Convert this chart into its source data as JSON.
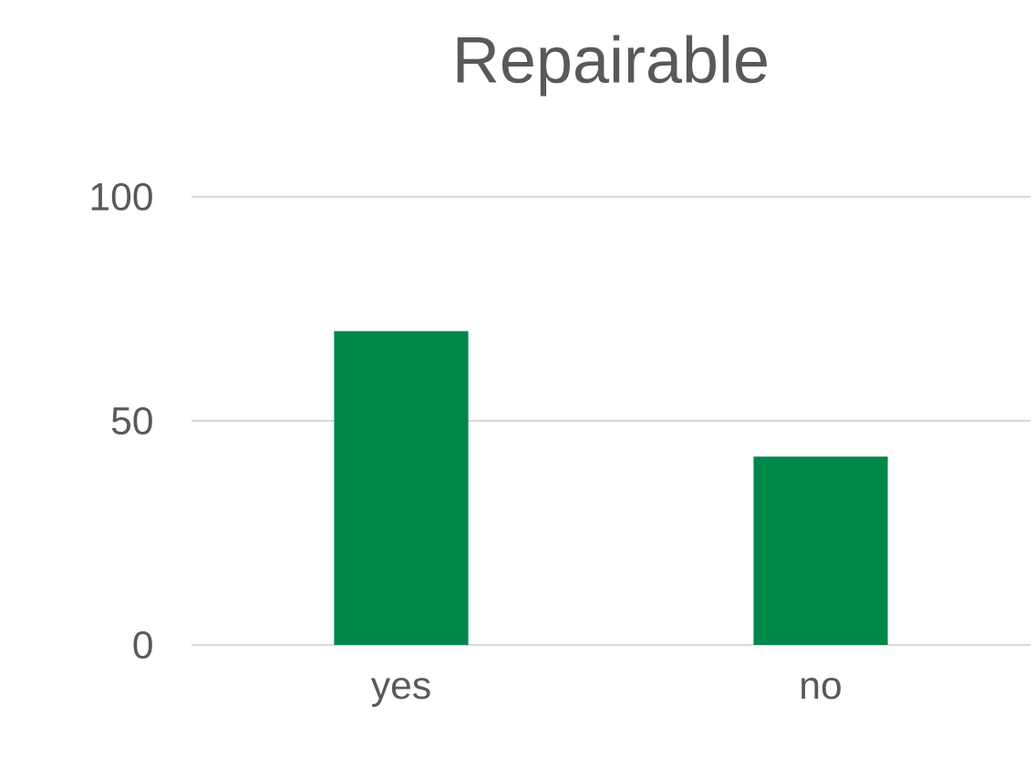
{
  "chart_data": {
    "type": "bar",
    "title": "Repairable",
    "categories": [
      "yes",
      "no"
    ],
    "values": [
      70,
      42
    ],
    "color": "#00884a",
    "ylim": [
      0,
      100
    ],
    "yticks": [
      0,
      50,
      100
    ],
    "grid": "y"
  }
}
